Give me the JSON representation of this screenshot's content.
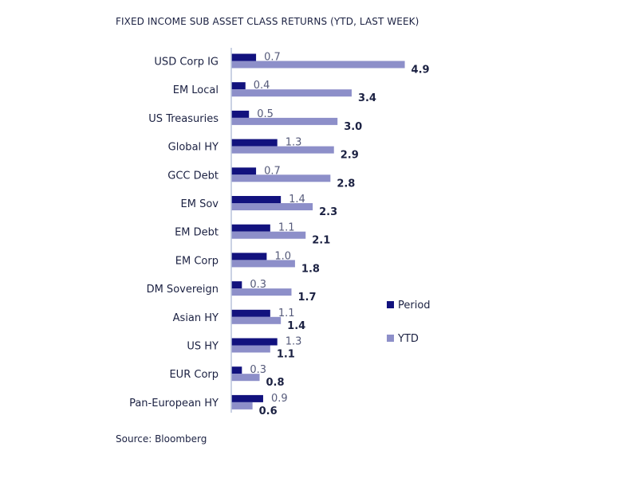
{
  "chart_data": {
    "type": "bar",
    "orientation": "horizontal",
    "title": "FIXED INCOME SUB ASSET CLASS RETURNS (YTD, LAST WEEK)",
    "source": "Source: Bloomberg",
    "categories": [
      "USD Corp IG",
      "EM Local",
      "US Treasuries",
      "Global HY",
      "GCC Debt",
      "EM Sov",
      "EM Debt",
      "EM Corp",
      "DM Sovereign",
      "Asian HY",
      "US HY",
      "EUR Corp",
      "Pan-European HY"
    ],
    "series": [
      {
        "name": "Period",
        "values": [
          0.7,
          0.4,
          0.5,
          1.3,
          0.7,
          1.4,
          1.1,
          1.0,
          0.3,
          1.1,
          1.3,
          0.3,
          0.9
        ],
        "labels": [
          "0.7",
          "0.4",
          "0.5",
          "1.3",
          "0.7",
          "1.4",
          "1.1",
          "1.0",
          "0.3",
          "1.1",
          "1.3",
          "0.3",
          "0.9"
        ]
      },
      {
        "name": "YTD",
        "values": [
          4.9,
          3.4,
          3.0,
          2.9,
          2.8,
          2.3,
          2.1,
          1.8,
          1.7,
          1.4,
          1.1,
          0.8,
          0.6
        ],
        "labels": [
          "4.9",
          "3.4",
          "3.0",
          "2.9",
          "2.8",
          "2.3",
          "2.1",
          "1.8",
          "1.7",
          "1.4",
          "1.1",
          "0.8",
          "0.6"
        ]
      }
    ],
    "xlim": [
      0,
      5
    ],
    "grid": false,
    "legend_position": "right",
    "colors": {
      "Period": "#12127e",
      "YTD": "#8d8fc9",
      "axis": "#b8c4dc"
    }
  }
}
